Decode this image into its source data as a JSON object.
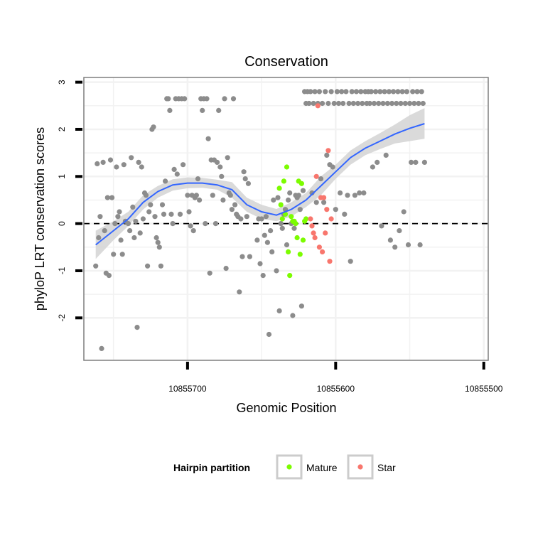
{
  "chart_data": {
    "type": "scatter",
    "title": "Conservation",
    "xlabel": "Genomic Position",
    "ylabel": "phyloP LRT conservation scores",
    "x_reversed": true,
    "xlim": [
      10855770,
      10855497
    ],
    "ylim": [
      -2.9,
      3.1
    ],
    "x_ticks": [
      10855700,
      10855600,
      10855500
    ],
    "x_tick_labels": [
      "10855700",
      "10855600",
      "10855500"
    ],
    "y_ticks": [
      -2,
      -1,
      0,
      1,
      2,
      3
    ],
    "y_tick_labels": [
      "-2",
      "-1",
      "0",
      "1",
      "2",
      "3"
    ],
    "grid": true,
    "reference_line": {
      "y": 0,
      "style": "dashed"
    },
    "legend": {
      "title": "Hairpin partition",
      "position": "bottom",
      "entries": [
        {
          "label": "Mature",
          "color": "#7CFC00"
        },
        {
          "label": "Star",
          "color": "#F8766D"
        }
      ]
    },
    "colors": {
      "other": "#8C8C8C",
      "mature": "#7CFC00",
      "star": "#F8766D",
      "smooth": "#3366FF",
      "ribbon": "#D3D3D3"
    },
    "series": [
      {
        "role": "other",
        "points": [
          [
            10855762,
            -0.9
          ],
          [
            10855761,
            1.27
          ],
          [
            10855760,
            -0.3
          ],
          [
            10855759,
            0.15
          ],
          [
            10855758,
            -2.65
          ],
          [
            10855757,
            1.3
          ],
          [
            10855756,
            -0.15
          ],
          [
            10855755,
            -1.05
          ],
          [
            10855754,
            0.55
          ],
          [
            10855753,
            -1.1
          ],
          [
            10855752,
            1.35
          ],
          [
            10855751,
            0.55
          ],
          [
            10855750,
            -0.65
          ],
          [
            10855749,
            0.0
          ],
          [
            10855748,
            1.2
          ],
          [
            10855747,
            0.15
          ],
          [
            10855746,
            0.25
          ],
          [
            10855745,
            -0.35
          ],
          [
            10855744,
            -0.65
          ],
          [
            10855743,
            1.25
          ],
          [
            10855742,
            0.05
          ],
          [
            10855740,
            0.0
          ],
          [
            10855739,
            -0.15
          ],
          [
            10855738,
            1.4
          ],
          [
            10855737,
            0.35
          ],
          [
            10855736,
            -0.3
          ],
          [
            10855735,
            0.05
          ],
          [
            10855734,
            -2.2
          ],
          [
            10855733,
            1.3
          ],
          [
            10855732,
            -0.2
          ],
          [
            10855731,
            1.2
          ],
          [
            10855730,
            0.1
          ],
          [
            10855729,
            0.65
          ],
          [
            10855728,
            0.6
          ],
          [
            10855727,
            -0.9
          ],
          [
            10855726,
            0.25
          ],
          [
            10855725,
            0.4
          ],
          [
            10855724,
            2.0
          ],
          [
            10855723,
            2.05
          ],
          [
            10855722,
            0.15
          ],
          [
            10855721,
            -0.3
          ],
          [
            10855720,
            -0.4
          ],
          [
            10855719,
            -0.5
          ],
          [
            10855718,
            -0.9
          ],
          [
            10855717,
            0.4
          ],
          [
            10855716,
            0.2
          ],
          [
            10855715,
            0.9
          ],
          [
            10855714,
            2.65
          ],
          [
            10855713,
            2.65
          ],
          [
            10855712,
            2.4
          ],
          [
            10855711,
            0.2
          ],
          [
            10855710,
            0.0
          ],
          [
            10855709,
            1.15
          ],
          [
            10855708,
            2.65
          ],
          [
            10855707,
            1.05
          ],
          [
            10855706,
            2.65
          ],
          [
            10855705,
            0.2
          ],
          [
            10855704,
            2.65
          ],
          [
            10855703,
            1.25
          ],
          [
            10855702,
            2.65
          ],
          [
            10855700,
            0.6
          ],
          [
            10855699,
            0.25
          ],
          [
            10855698,
            -0.05
          ],
          [
            10855697,
            0.6
          ],
          [
            10855696,
            -0.15
          ],
          [
            10855695,
            0.55
          ],
          [
            10855694,
            0.6
          ],
          [
            10855693,
            0.95
          ],
          [
            10855692,
            0.5
          ],
          [
            10855691,
            2.65
          ],
          [
            10855690,
            2.4
          ],
          [
            10855689,
            2.65
          ],
          [
            10855688,
            0.0
          ],
          [
            10855687,
            2.65
          ],
          [
            10855686,
            1.8
          ],
          [
            10855685,
            -1.05
          ],
          [
            10855684,
            1.35
          ],
          [
            10855683,
            0.6
          ],
          [
            10855682,
            1.35
          ],
          [
            10855681,
            0.0
          ],
          [
            10855680,
            1.3
          ],
          [
            10855679,
            2.4
          ],
          [
            10855678,
            1.2
          ],
          [
            10855677,
            1.0
          ],
          [
            10855676,
            0.5
          ],
          [
            10855675,
            2.65
          ],
          [
            10855674,
            -0.95
          ],
          [
            10855673,
            1.4
          ],
          [
            10855672,
            0.65
          ],
          [
            10855671,
            0.6
          ],
          [
            10855670,
            0.3
          ],
          [
            10855669,
            2.65
          ],
          [
            10855668,
            0.4
          ],
          [
            10855667,
            0.2
          ],
          [
            10855666,
            0.15
          ],
          [
            10855665,
            -1.45
          ],
          [
            10855664,
            0.1
          ],
          [
            10855663,
            -0.7
          ],
          [
            10855662,
            1.1
          ],
          [
            10855661,
            0.95
          ],
          [
            10855660,
            0.15
          ],
          [
            10855659,
            0.85
          ],
          [
            10855658,
            -0.7
          ],
          [
            10855653,
            -0.35
          ],
          [
            10855652,
            0.1
          ],
          [
            10855651,
            -0.85
          ],
          [
            10855650,
            0.1
          ],
          [
            10855649,
            -1.1
          ],
          [
            10855648,
            -0.25
          ],
          [
            10855647,
            0.15
          ],
          [
            10855646,
            -0.4
          ],
          [
            10855645,
            -2.35
          ],
          [
            10855644,
            -0.15
          ],
          [
            10855643,
            -0.6
          ],
          [
            10855642,
            0.5
          ],
          [
            10855640,
            -1.0
          ],
          [
            10855639,
            0.55
          ],
          [
            10855638,
            -1.85
          ],
          [
            10855637,
            0.0
          ],
          [
            10855636,
            -0.1
          ],
          [
            10855635,
            0.2
          ],
          [
            10855634,
            0.3
          ],
          [
            10855633,
            -0.45
          ],
          [
            10855632,
            0.5
          ],
          [
            10855631,
            0.65
          ],
          [
            10855630,
            0.0
          ],
          [
            10855629,
            -1.95
          ],
          [
            10855628,
            -0.1
          ],
          [
            10855627,
            0.6
          ],
          [
            10855626,
            0.55
          ],
          [
            10855625,
            0.6
          ],
          [
            10855624,
            0.3
          ],
          [
            10855623,
            -1.75
          ],
          [
            10855622,
            0.7
          ],
          [
            10855621,
            2.8
          ],
          [
            10855620,
            2.55
          ],
          [
            10855619,
            2.8
          ],
          [
            10855618,
            2.55
          ],
          [
            10855617,
            2.8
          ],
          [
            10855616,
            0.65
          ],
          [
            10855615,
            2.55
          ],
          [
            10855614,
            2.8
          ],
          [
            10855613,
            0.45
          ],
          [
            10855612,
            2.55
          ],
          [
            10855611,
            2.8
          ],
          [
            10855610,
            0.95
          ],
          [
            10855609,
            2.55
          ],
          [
            10855608,
            0.45
          ],
          [
            10855607,
            2.8
          ],
          [
            10855606,
            1.45
          ],
          [
            10855605,
            2.55
          ],
          [
            10855604,
            1.25
          ],
          [
            10855603,
            2.8
          ],
          [
            10855602,
            1.2
          ],
          [
            10855601,
            2.55
          ],
          [
            10855600,
            0.3
          ],
          [
            10855599,
            2.8
          ],
          [
            10855598,
            2.55
          ],
          [
            10855597,
            0.65
          ],
          [
            10855596,
            2.8
          ],
          [
            10855595,
            2.55
          ],
          [
            10855594,
            0.2
          ],
          [
            10855593,
            2.8
          ],
          [
            10855592,
            0.6
          ],
          [
            10855591,
            2.55
          ],
          [
            10855590,
            -0.8
          ],
          [
            10855589,
            2.8
          ],
          [
            10855588,
            2.55
          ],
          [
            10855587,
            0.6
          ],
          [
            10855586,
            2.8
          ],
          [
            10855585,
            2.55
          ],
          [
            10855584,
            0.65
          ],
          [
            10855583,
            2.8
          ],
          [
            10855582,
            2.55
          ],
          [
            10855581,
            0.65
          ],
          [
            10855580,
            2.8
          ],
          [
            10855579,
            2.55
          ],
          [
            10855578,
            2.8
          ],
          [
            10855577,
            2.55
          ],
          [
            10855576,
            2.8
          ],
          [
            10855575,
            1.2
          ],
          [
            10855574,
            2.55
          ],
          [
            10855573,
            2.8
          ],
          [
            10855572,
            1.3
          ],
          [
            10855571,
            2.55
          ],
          [
            10855570,
            2.8
          ],
          [
            10855569,
            -0.05
          ],
          [
            10855568,
            2.55
          ],
          [
            10855567,
            2.8
          ],
          [
            10855566,
            1.45
          ],
          [
            10855565,
            2.55
          ],
          [
            10855564,
            2.8
          ],
          [
            10855563,
            -0.35
          ],
          [
            10855562,
            2.55
          ],
          [
            10855561,
            2.8
          ],
          [
            10855560,
            -0.5
          ],
          [
            10855559,
            2.55
          ],
          [
            10855558,
            2.8
          ],
          [
            10855557,
            -0.15
          ],
          [
            10855556,
            2.55
          ],
          [
            10855555,
            2.8
          ],
          [
            10855554,
            0.25
          ],
          [
            10855553,
            2.55
          ],
          [
            10855552,
            2.8
          ],
          [
            10855551,
            -0.45
          ],
          [
            10855550,
            2.55
          ],
          [
            10855549,
            1.3
          ],
          [
            10855548,
            2.8
          ],
          [
            10855547,
            2.55
          ],
          [
            10855546,
            1.3
          ],
          [
            10855545,
            2.8
          ],
          [
            10855544,
            2.55
          ],
          [
            10855543,
            -0.45
          ],
          [
            10855542,
            2.8
          ],
          [
            10855541,
            2.55
          ],
          [
            10855540,
            1.3
          ]
        ]
      },
      {
        "name": "Mature",
        "role": "mature",
        "points": [
          [
            10855638,
            0.75
          ],
          [
            10855637,
            0.4
          ],
          [
            10855636,
            0.1
          ],
          [
            10855635,
            0.9
          ],
          [
            10855634,
            0.2
          ],
          [
            10855633,
            1.2
          ],
          [
            10855632,
            -0.6
          ],
          [
            10855631,
            -1.1
          ],
          [
            10855630,
            0.15
          ],
          [
            10855629,
            0.05
          ],
          [
            10855628,
            0.05
          ],
          [
            10855627,
            0.0
          ],
          [
            10855626,
            -0.3
          ],
          [
            10855625,
            0.9
          ],
          [
            10855624,
            -0.65
          ],
          [
            10855623,
            0.85
          ],
          [
            10855622,
            -0.35
          ],
          [
            10855621,
            0.05
          ],
          [
            10855620,
            0.1
          ]
        ]
      },
      {
        "name": "Star",
        "role": "star",
        "points": [
          [
            10855617,
            0.1
          ],
          [
            10855616,
            -0.05
          ],
          [
            10855615,
            -0.2
          ],
          [
            10855614,
            -0.3
          ],
          [
            10855613,
            1.0
          ],
          [
            10855612,
            2.5
          ],
          [
            10855611,
            -0.5
          ],
          [
            10855610,
            0.55
          ],
          [
            10855609,
            -0.6
          ],
          [
            10855608,
            0.55
          ],
          [
            10855607,
            -0.2
          ],
          [
            10855606,
            0.3
          ],
          [
            10855605,
            1.55
          ],
          [
            10855604,
            -0.8
          ],
          [
            10855603,
            0.1
          ]
        ]
      }
    ],
    "smooth": {
      "x": [
        10855762,
        10855750,
        10855740,
        10855730,
        10855720,
        10855710,
        10855700,
        10855690,
        10855680,
        10855670,
        10855660,
        10855650,
        10855640,
        10855630,
        10855620,
        10855610,
        10855600,
        10855590,
        10855580,
        10855570,
        10855560,
        10855550,
        10855540
      ],
      "y": [
        -0.45,
        -0.15,
        0.1,
        0.45,
        0.68,
        0.82,
        0.86,
        0.86,
        0.82,
        0.72,
        0.4,
        0.25,
        0.18,
        0.3,
        0.5,
        0.8,
        1.1,
        1.4,
        1.6,
        1.75,
        1.9,
        2.02,
        2.12
      ],
      "ymin": [
        -0.75,
        -0.35,
        -0.05,
        0.3,
        0.55,
        0.7,
        0.75,
        0.76,
        0.72,
        0.55,
        0.25,
        0.1,
        0.05,
        0.15,
        0.35,
        0.6,
        0.95,
        1.25,
        1.45,
        1.58,
        1.7,
        1.75,
        1.8
      ],
      "ymax": [
        -0.15,
        0.05,
        0.25,
        0.6,
        0.8,
        0.94,
        0.98,
        0.97,
        0.93,
        0.88,
        0.55,
        0.4,
        0.31,
        0.45,
        0.65,
        1.0,
        1.25,
        1.55,
        1.75,
        1.92,
        2.1,
        2.3,
        2.45
      ]
    }
  }
}
